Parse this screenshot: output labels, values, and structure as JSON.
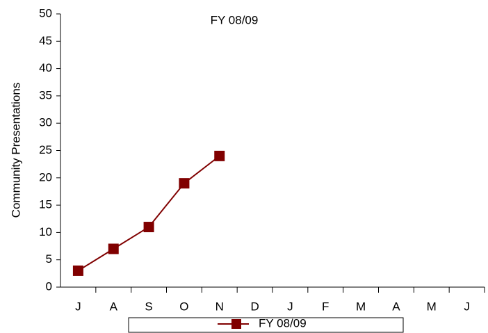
{
  "chart_data": {
    "type": "line",
    "title": "FY 08/09",
    "y_label": "Community Presentations",
    "categories": [
      "J",
      "A",
      "S",
      "O",
      "N",
      "D",
      "J",
      "F",
      "M",
      "A",
      "M",
      "J"
    ],
    "series": [
      {
        "name": "FY 08/09",
        "color": "#800000",
        "values": [
          3,
          7,
          11,
          19,
          24,
          null,
          null,
          null,
          null,
          null,
          null,
          null
        ]
      }
    ],
    "ylim": [
      0,
      50
    ],
    "yticks": [
      0,
      5,
      10,
      15,
      20,
      25,
      30,
      35,
      40,
      45,
      50
    ],
    "grid": false,
    "legend": "bottom"
  }
}
